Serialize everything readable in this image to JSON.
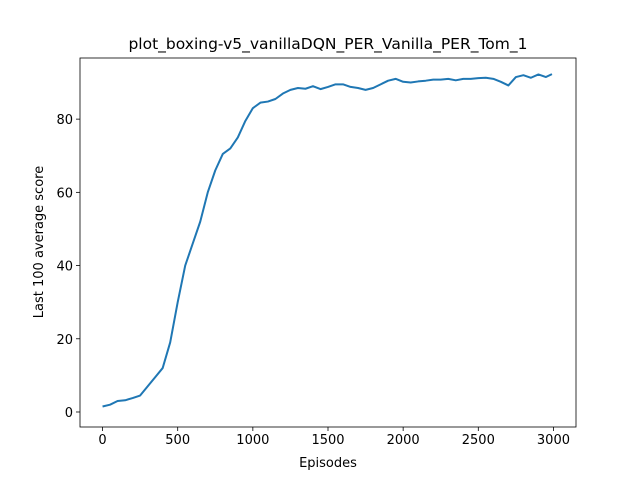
{
  "chart_data": {
    "type": "line",
    "title": "plot_boxing-v5_vanillaDQN_PER_Vanilla_PER_Tom_1",
    "x_label": "Episodes",
    "y_label": "Last 100 average score",
    "x": [
      0,
      50,
      100,
      150,
      200,
      250,
      300,
      350,
      400,
      450,
      500,
      550,
      600,
      650,
      700,
      750,
      800,
      850,
      900,
      950,
      1000,
      1050,
      1100,
      1150,
      1200,
      1250,
      1300,
      1350,
      1400,
      1450,
      1500,
      1550,
      1600,
      1650,
      1700,
      1750,
      1800,
      1850,
      1900,
      1950,
      2000,
      2050,
      2100,
      2150,
      2200,
      2250,
      2300,
      2350,
      2400,
      2450,
      2500,
      2550,
      2600,
      2650,
      2700,
      2750,
      2800,
      2850,
      2900,
      2950,
      2990
    ],
    "series": [
      {
        "color": "#1f77b4",
        "values": [
          1.5,
          2,
          3,
          3.2,
          3.8,
          4.5,
          7,
          9.5,
          12,
          19,
          30,
          40,
          46,
          52,
          60,
          66,
          70.5,
          72,
          75,
          79.5,
          83,
          84.5,
          84.8,
          85.5,
          87,
          88,
          88.5,
          88.3,
          89,
          88.2,
          88.8,
          89.5,
          89.5,
          88.8,
          88.5,
          88,
          88.5,
          89.5,
          90.5,
          91,
          90.2,
          90,
          90.3,
          90.5,
          90.8,
          90.8,
          91,
          90.6,
          91,
          91,
          91.2,
          91.3,
          91,
          90.2,
          89.2,
          91.5,
          92,
          91.3,
          92.2,
          91.5,
          92.3
        ]
      }
    ],
    "xlim": [
      -150,
      3150
    ],
    "ylim": [
      -4.1,
      96.7
    ],
    "xticks": [
      0,
      500,
      1000,
      1500,
      2000,
      2500,
      3000
    ],
    "yticks": [
      0,
      20,
      40,
      60,
      80
    ]
  }
}
